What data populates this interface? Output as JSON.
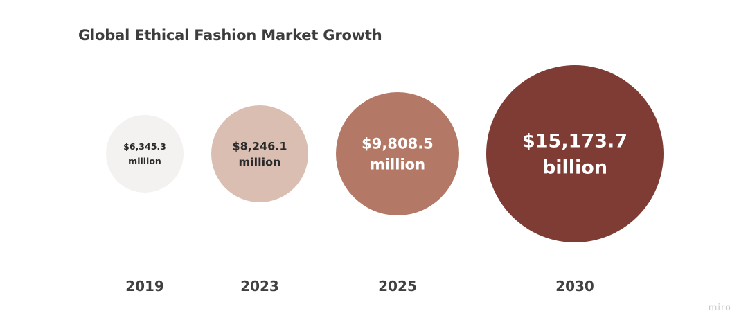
{
  "chart_data": {
    "type": "bubble",
    "title": "Global Ethical Fashion Market Growth",
    "categories": [
      "2019",
      "2023",
      "2025",
      "2030"
    ],
    "values": [
      6345.3,
      8246.1,
      9808.5,
      15173.7
    ],
    "units": [
      "million",
      "million",
      "million",
      "billion"
    ],
    "value_labels": [
      [
        "$6,345.3",
        "million"
      ],
      [
        "$8,246.1",
        "million"
      ],
      [
        "$9,808.5",
        "million"
      ],
      [
        "$15,173.7",
        "billion"
      ]
    ],
    "colors": [
      "#f4f2f0",
      "#dbbeb2",
      "#b47966",
      "#7e3c34"
    ],
    "label_colors": [
      "#2a2a2a",
      "#2a2a2a",
      "#ffffff",
      "#ffffff"
    ]
  },
  "watermark": "miro"
}
